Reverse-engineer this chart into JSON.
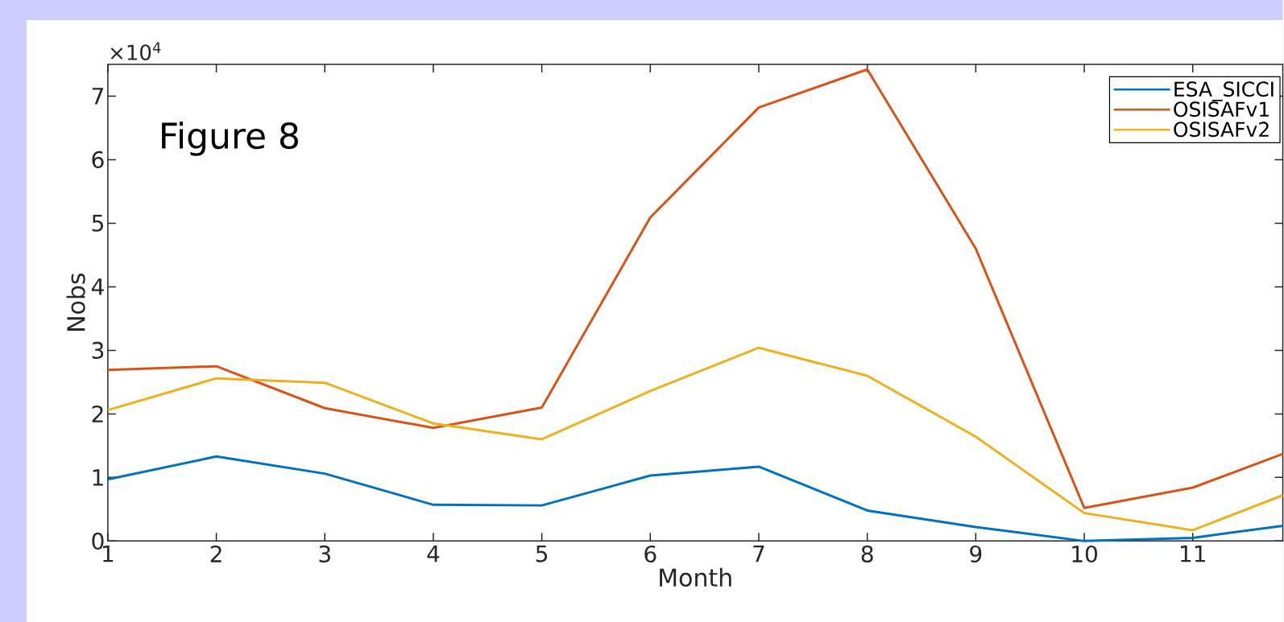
{
  "chart_data": {
    "type": "line",
    "xlabel": "Month",
    "ylabel": "Nobs",
    "x": [
      1,
      2,
      3,
      4,
      5,
      6,
      7,
      8,
      9,
      10,
      11,
      11.83
    ],
    "series": [
      {
        "name": "ESA_SICCI",
        "color": "#0072bd",
        "values": [
          0.97,
          1.33,
          1.06,
          0.57,
          0.56,
          1.03,
          1.17,
          0.48,
          0.22,
          0,
          0.05,
          0.24
        ]
      },
      {
        "name": "OSISAFv1",
        "color": "#d95319",
        "values": [
          2.69,
          2.75,
          2.09,
          1.78,
          2.1,
          5.09,
          6.82,
          7.42,
          4.6,
          0.52,
          0.84,
          1.37
        ]
      },
      {
        "name": "OSISAFv2",
        "color": "#edb120",
        "values": [
          2.06,
          2.56,
          2.49,
          1.85,
          1.6,
          2.36,
          3.04,
          2.6,
          1.64,
          0.44,
          0.17,
          0.72
        ]
      }
    ],
    "xlim": [
      1,
      11.83
    ],
    "xticks": [
      1,
      2,
      3,
      4,
      5,
      6,
      7,
      8,
      9,
      10,
      11
    ],
    "ylim": [
      0,
      7.5
    ],
    "yticks": [
      0,
      1,
      2,
      3,
      4,
      5,
      6,
      7
    ],
    "annotations": [
      "×10$^{4}$",
      "Figure 8"
    ],
    "legend": "top right",
    "marker": "none",
    "line_style": "solid",
    "grid": false
  }
}
